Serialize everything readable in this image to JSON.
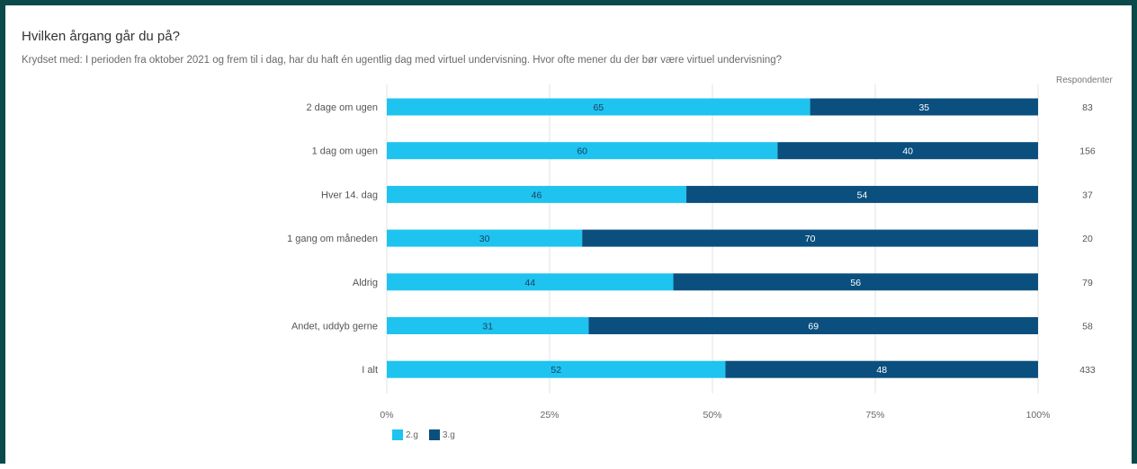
{
  "title": "Hvilken årgang går du på?",
  "subtitle": "Krydset med: I perioden fra oktober 2021 og frem til i dag, har du haft én ugentlig dag med virtuel undervisning. Hvor ofte mener du der bør være virtuel undervisning?",
  "respondents_header": "Respondenter",
  "colors": {
    "series_2g": "#1ec3ef",
    "series_3g": "#0a4f7e",
    "grid": "#e3e3e3"
  },
  "chart_data": {
    "type": "bar",
    "orientation": "horizontal",
    "stacked": true,
    "categories": [
      "2 dage om ugen",
      "1 dag om ugen",
      "Hver 14. dag",
      "1 gang om måneden",
      "Aldrig",
      "Andet, uddyb gerne",
      "I alt"
    ],
    "series": [
      {
        "name": "2.g",
        "values": [
          65,
          60,
          46,
          30,
          44,
          31,
          52
        ]
      },
      {
        "name": "3.g",
        "values": [
          35,
          40,
          54,
          70,
          56,
          69,
          48
        ]
      }
    ],
    "respondents": [
      83,
      156,
      37,
      20,
      79,
      58,
      433
    ],
    "xticks": [
      "0%",
      "25%",
      "50%",
      "75%",
      "100%"
    ],
    "xlim": [
      0,
      100
    ],
    "grid": true,
    "legend_position": "bottom-left"
  }
}
